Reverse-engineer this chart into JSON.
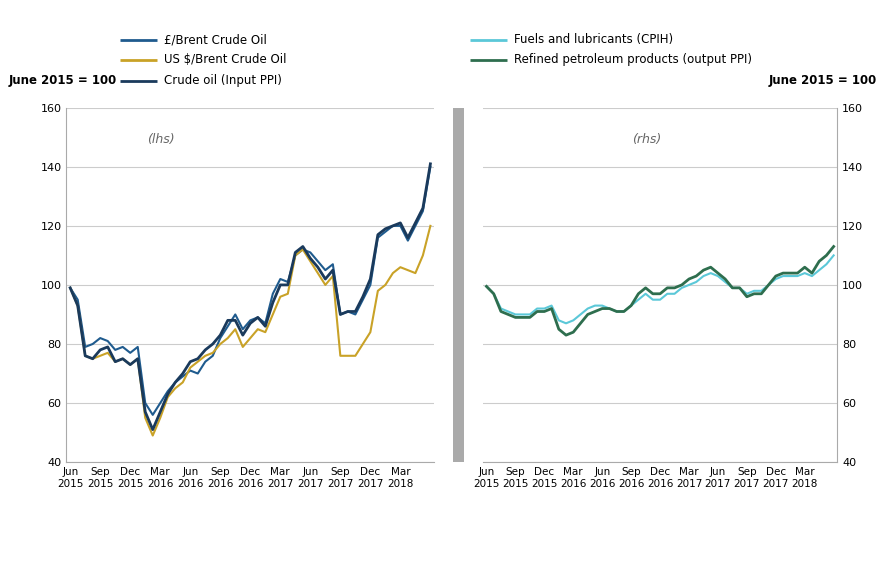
{
  "lhs_label": "(lhs)",
  "rhs_label": "(rhs)",
  "left_ylabel": "June 2015 = 100",
  "right_ylabel": "June 2015 = 100",
  "ylim": [
    40,
    160
  ],
  "yticks": [
    40,
    60,
    80,
    100,
    120,
    140,
    160
  ],
  "legend": {
    "line1_label": "£/Brent Crude Oil",
    "line1_color": "#1f5b8e",
    "line2_label": "US $/Brent Crude Oil",
    "line2_color": "#c9a227",
    "line3_label": "Crude oil (Input PPI)",
    "line3_color": "#1a3a5c",
    "line4_label": "Fuels and lubricants (CPIH)",
    "line4_color": "#5bc8d8",
    "line5_label": "Refined petroleum products (output PPI)",
    "line5_color": "#2e6e4e"
  },
  "xtick_labels": [
    "Jun\n2015",
    "Sep\n2015",
    "Dec\n2015",
    "Mar\n2016",
    "Jun\n2016",
    "Sep\n2016",
    "Dec\n2016",
    "Mar\n2017",
    "Jun\n2017",
    "Sep\n2017",
    "Dec\n2017",
    "Mar\n2018"
  ],
  "gbp_brent": [
    99,
    95,
    79,
    80,
    82,
    81,
    78,
    79,
    77,
    79,
    60,
    56,
    60,
    64,
    67,
    69,
    71,
    70,
    74,
    76,
    82,
    86,
    90,
    85,
    88,
    89,
    87,
    97,
    102,
    101,
    110,
    112,
    111,
    108,
    105,
    107,
    90,
    91,
    90,
    95,
    100,
    116,
    118,
    120,
    120,
    115,
    120,
    125,
    140
  ],
  "usd_brent": [
    99,
    93,
    76,
    75,
    76,
    77,
    74,
    75,
    73,
    75,
    55,
    49,
    55,
    62,
    65,
    67,
    72,
    74,
    76,
    77,
    80,
    82,
    85,
    79,
    82,
    85,
    84,
    90,
    96,
    97,
    110,
    112,
    108,
    104,
    100,
    103,
    76,
    76,
    76,
    80,
    84,
    98,
    100,
    104,
    106,
    105,
    104,
    110,
    120
  ],
  "crude_ppi": [
    99,
    93,
    76,
    75,
    78,
    79,
    74,
    75,
    73,
    75,
    57,
    51,
    57,
    63,
    67,
    70,
    74,
    75,
    78,
    80,
    83,
    88,
    88,
    83,
    87,
    89,
    86,
    94,
    100,
    100,
    111,
    113,
    109,
    106,
    102,
    105,
    90,
    91,
    91,
    96,
    102,
    117,
    119,
    120,
    121,
    116,
    121,
    126,
    141
  ],
  "fuels_cpih": [
    99.5,
    97,
    92,
    91,
    90,
    90,
    90,
    92,
    92,
    93,
    88,
    87,
    88,
    90,
    92,
    93,
    93,
    92,
    91,
    91,
    93,
    95,
    97,
    95,
    95,
    97,
    97,
    99,
    100,
    101,
    103,
    104,
    103,
    101,
    99,
    99,
    97,
    98,
    98,
    100,
    102,
    103,
    103,
    103,
    104,
    103,
    105,
    107,
    110
  ],
  "refined_ppi": [
    99.5,
    97,
    91,
    90,
    89,
    89,
    89,
    91,
    91,
    92,
    85,
    83,
    84,
    87,
    90,
    91,
    92,
    92,
    91,
    91,
    93,
    97,
    99,
    97,
    97,
    99,
    99,
    100,
    102,
    103,
    105,
    106,
    104,
    102,
    99,
    99,
    96,
    97,
    97,
    100,
    103,
    104,
    104,
    104,
    106,
    104,
    108,
    110,
    113
  ],
  "divider_color": "#aaaaaa",
  "spine_color": "#aaaaaa",
  "grid_color": "#cccccc"
}
